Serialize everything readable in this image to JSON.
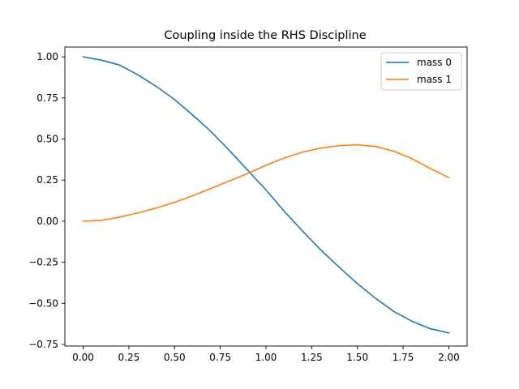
{
  "chart_data": {
    "type": "line",
    "title": "Coupling inside the RHS Discipline",
    "xlabel": "",
    "ylabel": "",
    "xlim": [
      -0.1,
      2.1
    ],
    "ylim": [
      -0.76,
      1.06
    ],
    "xticks": [
      0.0,
      0.25,
      0.5,
      0.75,
      1.0,
      1.25,
      1.5,
      1.75,
      2.0
    ],
    "xtick_labels": [
      "0.00",
      "0.25",
      "0.50",
      "0.75",
      "1.00",
      "1.25",
      "1.50",
      "1.75",
      "2.00"
    ],
    "yticks": [
      -0.75,
      -0.5,
      -0.25,
      0.0,
      0.25,
      0.5,
      0.75,
      1.0
    ],
    "ytick_labels": [
      "−0.75",
      "−0.50",
      "−0.25",
      "0.00",
      "0.25",
      "0.50",
      "0.75",
      "1.00"
    ],
    "grid": false,
    "legend_position": "top-right",
    "series": [
      {
        "name": "mass 0",
        "color": "#1f77b4",
        "x": [
          0.0,
          0.1,
          0.2,
          0.3,
          0.4,
          0.5,
          0.6,
          0.7,
          0.8,
          0.9,
          1.0,
          1.1,
          1.2,
          1.3,
          1.4,
          1.5,
          1.6,
          1.7,
          1.8,
          1.9,
          2.0
        ],
        "y": [
          1.0,
          0.98,
          0.95,
          0.89,
          0.82,
          0.74,
          0.645,
          0.545,
          0.43,
          0.31,
          0.19,
          0.06,
          -0.06,
          -0.175,
          -0.28,
          -0.38,
          -0.47,
          -0.55,
          -0.61,
          -0.655,
          -0.68
        ]
      },
      {
        "name": "mass 1",
        "color": "#ff7f0e",
        "x": [
          0.0,
          0.1,
          0.2,
          0.3,
          0.4,
          0.5,
          0.6,
          0.7,
          0.8,
          0.9,
          1.0,
          1.1,
          1.2,
          1.3,
          1.4,
          1.5,
          1.6,
          1.7,
          1.8,
          1.9,
          2.0
        ],
        "y": [
          0.0,
          0.005,
          0.025,
          0.05,
          0.08,
          0.115,
          0.155,
          0.2,
          0.245,
          0.29,
          0.34,
          0.385,
          0.42,
          0.445,
          0.46,
          0.465,
          0.455,
          0.425,
          0.38,
          0.32,
          0.265
        ]
      }
    ]
  }
}
